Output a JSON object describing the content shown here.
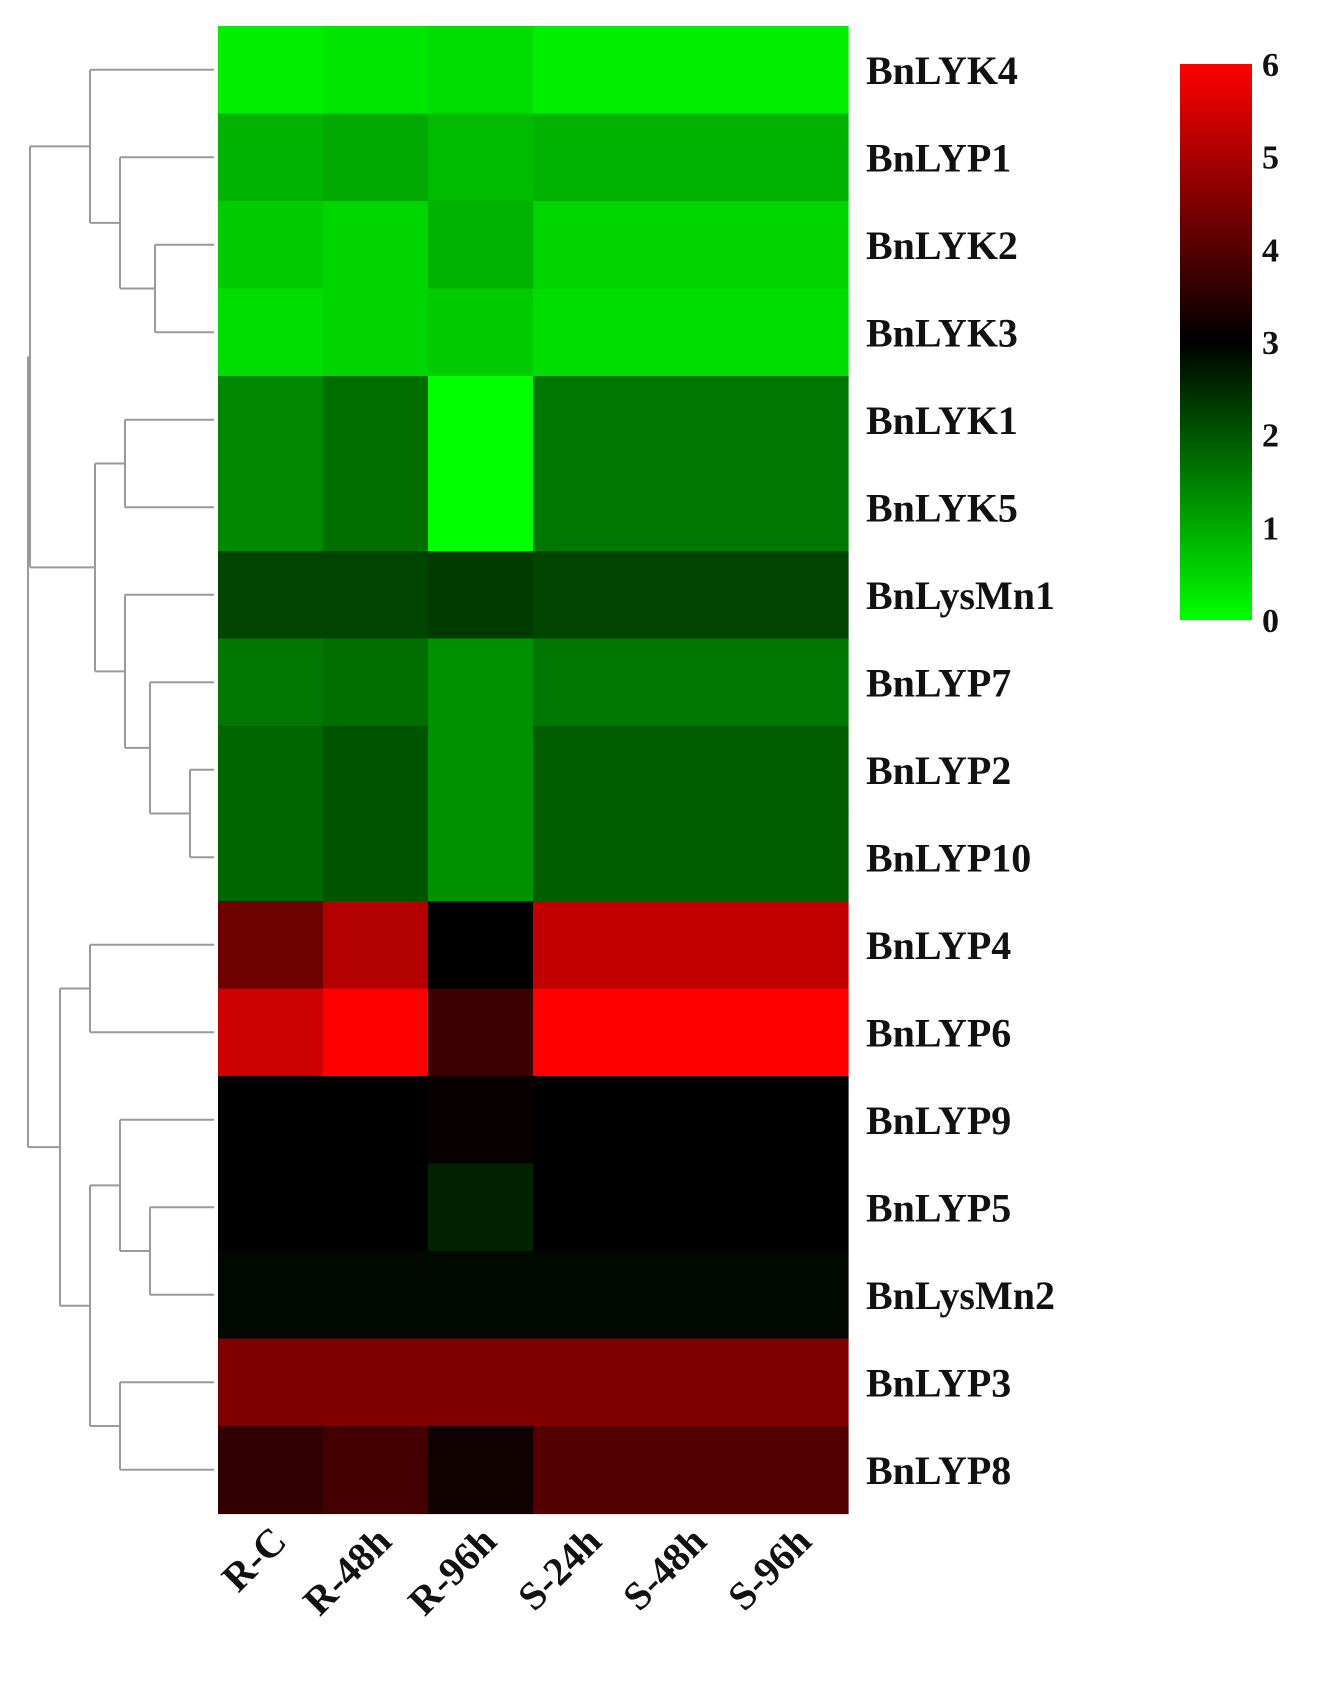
{
  "chart_data": {
    "type": "heatmap",
    "title": "",
    "rows": [
      "BnLYK4",
      "BnLYP1",
      "BnLYK2",
      "BnLYK3",
      "BnLYK1",
      "BnLYK5",
      "BnLysMn1",
      "BnLYP7",
      "BnLYP2",
      "BnLYP10",
      "BnLYP4",
      "BnLYP6",
      "BnLYP9",
      "BnLYP5",
      "BnLysMn2",
      "BnLYP3",
      "BnLYP8"
    ],
    "columns": [
      "R-C",
      "R-48h",
      "R-96h",
      "S-24h",
      "S-48h",
      "S-96h"
    ],
    "values": [
      [
        0.2,
        0.3,
        0.4,
        0.2,
        0.2,
        0.2
      ],
      [
        0.9,
        1.0,
        0.8,
        0.9,
        0.9,
        0.9
      ],
      [
        0.6,
        0.5,
        0.9,
        0.5,
        0.5,
        0.5
      ],
      [
        0.4,
        0.5,
        0.6,
        0.4,
        0.4,
        0.4
      ],
      [
        1.4,
        1.7,
        0.0,
        1.6,
        1.6,
        1.6
      ],
      [
        1.4,
        1.7,
        0.0,
        1.6,
        1.6,
        1.6
      ],
      [
        2.2,
        2.2,
        2.3,
        2.2,
        2.2,
        2.2
      ],
      [
        1.6,
        1.7,
        1.3,
        1.6,
        1.6,
        1.6
      ],
      [
        1.8,
        2.0,
        1.3,
        1.9,
        1.9,
        1.9
      ],
      [
        1.8,
        2.0,
        1.3,
        1.9,
        1.9,
        1.9
      ],
      [
        4.3,
        5.1,
        3.0,
        5.3,
        5.3,
        5.3
      ],
      [
        5.4,
        6.0,
        3.7,
        6.0,
        6.0,
        6.0
      ],
      [
        3.0,
        3.0,
        3.1,
        3.0,
        3.0,
        3.0
      ],
      [
        3.0,
        3.0,
        2.6,
        3.0,
        3.0,
        3.0
      ],
      [
        2.9,
        2.9,
        2.9,
        2.9,
        2.9,
        2.9
      ],
      [
        4.5,
        4.5,
        4.5,
        4.5,
        4.5,
        4.5
      ],
      [
        3.6,
        3.8,
        3.2,
        4.0,
        4.0,
        4.0
      ]
    ],
    "colorbar": {
      "min": 0,
      "max": 6,
      "ticks": [
        0,
        1,
        2,
        3,
        4,
        5,
        6
      ],
      "colors": {
        "low": "#00ff00",
        "mid": "#000000",
        "high": "#ff0000"
      }
    },
    "dendrogram_side": "left"
  }
}
